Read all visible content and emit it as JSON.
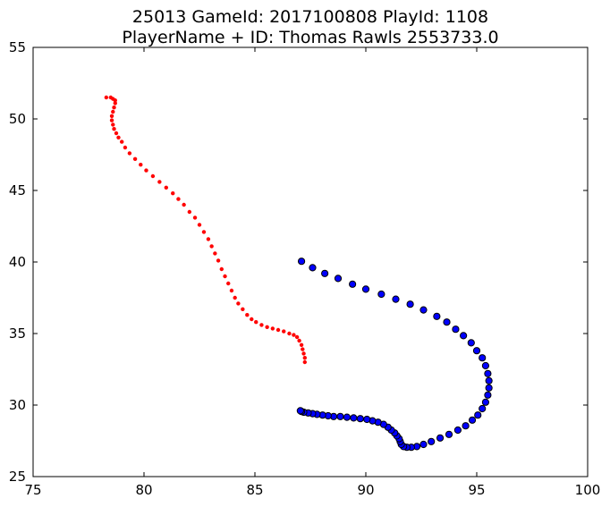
{
  "chart_data": {
    "type": "scatter",
    "title": "25013 GameId: 2017100808 PlayId: 1108",
    "subtitle": "PlayerName + ID: Thomas Rawls 2553733.0",
    "xlabel": "",
    "ylabel": "",
    "xlim": [
      75,
      100
    ],
    "ylim": [
      25,
      55
    ],
    "xticks": [
      75,
      80,
      85,
      90,
      95,
      100
    ],
    "yticks": [
      25,
      30,
      35,
      40,
      45,
      50,
      55
    ],
    "grid": false,
    "series": [
      {
        "color": "#ff0000",
        "marker": "small-dot",
        "points": [
          [
            78.3,
            51.5
          ],
          [
            78.5,
            51.5
          ],
          [
            78.6,
            51.4
          ],
          [
            78.7,
            51.3
          ],
          [
            78.7,
            51.1
          ],
          [
            78.65,
            50.8
          ],
          [
            78.6,
            50.5
          ],
          [
            78.55,
            50.2
          ],
          [
            78.55,
            49.9
          ],
          [
            78.6,
            49.6
          ],
          [
            78.65,
            49.3
          ],
          [
            78.75,
            49.0
          ],
          [
            78.85,
            48.7
          ],
          [
            79.0,
            48.4
          ],
          [
            79.15,
            48.0
          ],
          [
            79.35,
            47.6
          ],
          [
            79.6,
            47.2
          ],
          [
            79.85,
            46.8
          ],
          [
            80.1,
            46.4
          ],
          [
            80.4,
            46.0
          ],
          [
            80.7,
            45.6
          ],
          [
            81.0,
            45.2
          ],
          [
            81.3,
            44.8
          ],
          [
            81.55,
            44.4
          ],
          [
            81.8,
            44.0
          ],
          [
            82.05,
            43.5
          ],
          [
            82.3,
            43.1
          ],
          [
            82.5,
            42.6
          ],
          [
            82.7,
            42.1
          ],
          [
            82.9,
            41.6
          ],
          [
            83.05,
            41.1
          ],
          [
            83.2,
            40.6
          ],
          [
            83.35,
            40.1
          ],
          [
            83.5,
            39.5
          ],
          [
            83.65,
            39.0
          ],
          [
            83.8,
            38.5
          ],
          [
            83.95,
            38.0
          ],
          [
            84.1,
            37.5
          ],
          [
            84.25,
            37.1
          ],
          [
            84.45,
            36.7
          ],
          [
            84.65,
            36.3
          ],
          [
            84.85,
            36.0
          ],
          [
            85.05,
            35.8
          ],
          [
            85.3,
            35.6
          ],
          [
            85.55,
            35.45
          ],
          [
            85.8,
            35.35
          ],
          [
            86.05,
            35.25
          ],
          [
            86.3,
            35.15
          ],
          [
            86.55,
            35.0
          ],
          [
            86.75,
            34.9
          ],
          [
            86.9,
            34.75
          ],
          [
            87.0,
            34.5
          ],
          [
            87.1,
            34.2
          ],
          [
            87.15,
            33.9
          ],
          [
            87.2,
            33.6
          ],
          [
            87.25,
            33.3
          ],
          [
            87.25,
            33.0
          ]
        ]
      },
      {
        "color": "#0000ff",
        "marker": "circle",
        "points": [
          [
            87.1,
            40.05
          ],
          [
            87.6,
            39.6
          ],
          [
            88.15,
            39.2
          ],
          [
            88.75,
            38.85
          ],
          [
            89.4,
            38.45
          ],
          [
            90.0,
            38.1
          ],
          [
            90.7,
            37.75
          ],
          [
            91.35,
            37.4
          ],
          [
            92.0,
            37.05
          ],
          [
            92.6,
            36.65
          ],
          [
            93.2,
            36.2
          ],
          [
            93.65,
            35.8
          ],
          [
            94.05,
            35.3
          ],
          [
            94.4,
            34.85
          ],
          [
            94.75,
            34.35
          ],
          [
            95.0,
            33.8
          ],
          [
            95.25,
            33.3
          ],
          [
            95.4,
            32.75
          ],
          [
            95.5,
            32.2
          ],
          [
            95.55,
            31.7
          ],
          [
            95.55,
            31.2
          ],
          [
            95.5,
            30.7
          ],
          [
            95.4,
            30.2
          ],
          [
            95.25,
            29.75
          ],
          [
            95.05,
            29.3
          ],
          [
            94.8,
            28.95
          ],
          [
            94.5,
            28.55
          ],
          [
            94.15,
            28.25
          ],
          [
            93.75,
            27.95
          ],
          [
            93.35,
            27.7
          ],
          [
            92.95,
            27.45
          ],
          [
            92.6,
            27.25
          ],
          [
            92.3,
            27.1
          ],
          [
            92.05,
            27.05
          ],
          [
            91.85,
            27.05
          ],
          [
            91.7,
            27.1
          ],
          [
            91.6,
            27.25
          ],
          [
            91.55,
            27.45
          ],
          [
            91.5,
            27.65
          ],
          [
            91.4,
            27.85
          ],
          [
            91.3,
            28.05
          ],
          [
            91.15,
            28.25
          ],
          [
            91.0,
            28.45
          ],
          [
            90.8,
            28.65
          ],
          [
            90.55,
            28.8
          ],
          [
            90.3,
            28.9
          ],
          [
            90.05,
            29.0
          ],
          [
            89.75,
            29.05
          ],
          [
            89.45,
            29.1
          ],
          [
            89.15,
            29.15
          ],
          [
            88.85,
            29.2
          ],
          [
            88.55,
            29.2
          ],
          [
            88.3,
            29.25
          ],
          [
            88.05,
            29.3
          ],
          [
            87.8,
            29.35
          ],
          [
            87.6,
            29.4
          ],
          [
            87.4,
            29.45
          ],
          [
            87.2,
            29.5
          ],
          [
            87.1,
            29.55
          ],
          [
            87.05,
            29.6
          ]
        ]
      }
    ]
  }
}
